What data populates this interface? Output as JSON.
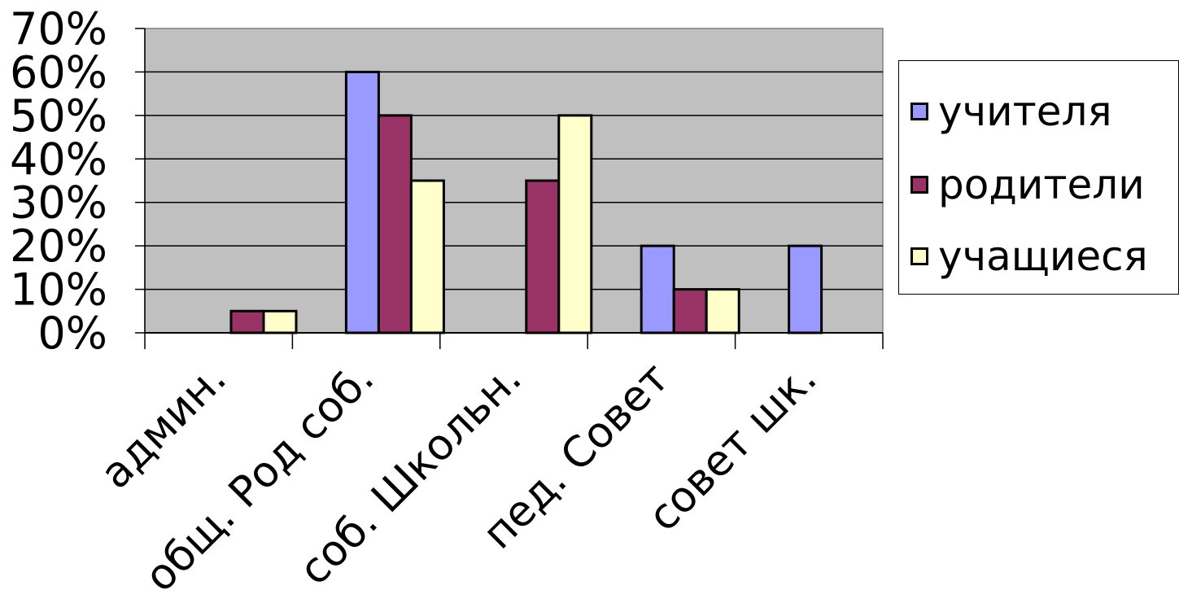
{
  "chart_data": {
    "type": "bar",
    "categories": [
      "админ.",
      "общ. Род соб.",
      "соб. Школьн.",
      "пед. Совет",
      "совет шк."
    ],
    "series": [
      {
        "name": "учителя",
        "color": "#9999ff",
        "values": [
          0,
          60,
          0,
          20,
          20
        ]
      },
      {
        "name": "родители",
        "color": "#993366",
        "values": [
          5,
          50,
          35,
          10,
          0
        ]
      },
      {
        "name": "учащиеся",
        "color": "#ffffcc",
        "values": [
          5,
          35,
          50,
          10,
          0
        ]
      }
    ],
    "yticks": [
      "0%",
      "10%",
      "20%",
      "30%",
      "40%",
      "50%",
      "60%",
      "70%"
    ],
    "ylim": [
      0,
      70
    ],
    "grid": true,
    "plot_background": "#c0c0c0",
    "legend_position": "right"
  }
}
